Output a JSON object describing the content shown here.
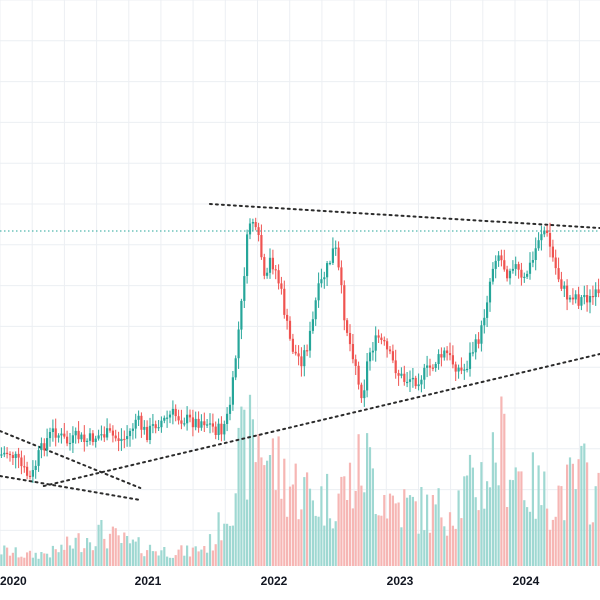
{
  "chart_data": {
    "type": "candlestick",
    "x_tick_labels": [
      "2020",
      "2021",
      "2022",
      "2023",
      "2024"
    ],
    "x_range": [
      2019.98,
      2024.64
    ],
    "y_range": [
      0,
      600
    ],
    "grid": true,
    "colors": {
      "up": "#26a69a",
      "down": "#ef5350",
      "up_volume": "#9fd8d2",
      "down_volume": "#f6b6b4",
      "grid": "#eceff3",
      "resistance": "#26a69a",
      "trendline": "#2b2b2b"
    },
    "price_path": [
      [
        2019.98,
        455
      ],
      [
        2020.05,
        452
      ],
      [
        2020.1,
        458
      ],
      [
        2020.16,
        470
      ],
      [
        2020.22,
        480
      ],
      [
        2020.28,
        455
      ],
      [
        2020.34,
        440
      ],
      [
        2020.4,
        430
      ],
      [
        2020.46,
        438
      ],
      [
        2020.52,
        444
      ],
      [
        2020.58,
        436
      ],
      [
        2020.64,
        442
      ],
      [
        2020.7,
        438
      ],
      [
        2020.76,
        435
      ],
      [
        2020.82,
        434
      ],
      [
        2020.88,
        438
      ],
      [
        2020.94,
        440
      ],
      [
        2021.0,
        430
      ],
      [
        2021.04,
        418
      ],
      [
        2021.08,
        428
      ],
      [
        2021.12,
        434
      ],
      [
        2021.16,
        428
      ],
      [
        2021.2,
        422
      ],
      [
        2021.26,
        420
      ],
      [
        2021.32,
        414
      ],
      [
        2021.38,
        418
      ],
      [
        2021.44,
        420
      ],
      [
        2021.5,
        422
      ],
      [
        2021.56,
        420
      ],
      [
        2021.62,
        426
      ],
      [
        2021.66,
        430
      ],
      [
        2021.7,
        430
      ],
      [
        2021.74,
        420
      ],
      [
        2021.78,
        395
      ],
      [
        2021.82,
        345
      ],
      [
        2021.86,
        300
      ],
      [
        2021.89,
        250
      ],
      [
        2021.92,
        222
      ],
      [
        2021.94,
        218
      ],
      [
        2021.96,
        232
      ],
      [
        2022.0,
        245
      ],
      [
        2022.04,
        290
      ],
      [
        2022.08,
        258
      ],
      [
        2022.12,
        270
      ],
      [
        2022.16,
        290
      ],
      [
        2022.2,
        320
      ],
      [
        2022.24,
        345
      ],
      [
        2022.28,
        355
      ],
      [
        2022.32,
        360
      ],
      [
        2022.36,
        348
      ],
      [
        2022.4,
        330
      ],
      [
        2022.44,
        295
      ],
      [
        2022.5,
        275
      ],
      [
        2022.54,
        262
      ],
      [
        2022.58,
        245
      ],
      [
        2022.62,
        280
      ],
      [
        2022.66,
        320
      ],
      [
        2022.7,
        345
      ],
      [
        2022.74,
        360
      ],
      [
        2022.76,
        385
      ],
      [
        2022.8,
        395
      ],
      [
        2022.84,
        355
      ],
      [
        2022.88,
        345
      ],
      [
        2022.92,
        338
      ],
      [
        2022.96,
        345
      ],
      [
        2023.0,
        355
      ],
      [
        2023.04,
        365
      ],
      [
        2023.08,
        375
      ],
      [
        2023.12,
        380
      ],
      [
        2023.16,
        378
      ],
      [
        2023.2,
        380
      ],
      [
        2023.24,
        377
      ],
      [
        2023.28,
        373
      ],
      [
        2023.32,
        368
      ],
      [
        2023.36,
        362
      ],
      [
        2023.4,
        358
      ],
      [
        2023.44,
        352
      ],
      [
        2023.48,
        360
      ],
      [
        2023.52,
        365
      ],
      [
        2023.56,
        372
      ],
      [
        2023.6,
        368
      ],
      [
        2023.64,
        352
      ],
      [
        2023.68,
        345
      ],
      [
        2023.72,
        330
      ],
      [
        2023.76,
        300
      ],
      [
        2023.8,
        270
      ],
      [
        2023.84,
        250
      ],
      [
        2023.88,
        262
      ],
      [
        2023.92,
        272
      ],
      [
        2023.96,
        262
      ],
      [
        2024.0,
        270
      ],
      [
        2024.04,
        285
      ],
      [
        2024.08,
        270
      ],
      [
        2024.12,
        260
      ],
      [
        2024.16,
        238
      ],
      [
        2024.2,
        228
      ],
      [
        2024.24,
        240
      ],
      [
        2024.28,
        262
      ],
      [
        2024.32,
        278
      ],
      [
        2024.36,
        290
      ],
      [
        2024.4,
        300
      ],
      [
        2024.44,
        292
      ],
      [
        2024.48,
        302
      ],
      [
        2024.52,
        295
      ],
      [
        2024.56,
        300
      ],
      [
        2024.6,
        296
      ],
      [
        2024.64,
        298
      ]
    ],
    "volume_path": [
      [
        2019.98,
        18
      ],
      [
        2020.2,
        12
      ],
      [
        2020.4,
        16
      ],
      [
        2020.55,
        26
      ],
      [
        2020.75,
        38
      ],
      [
        2020.9,
        30
      ],
      [
        2021.0,
        24
      ],
      [
        2021.2,
        18
      ],
      [
        2021.45,
        16
      ],
      [
        2021.6,
        24
      ],
      [
        2021.66,
        34
      ],
      [
        2021.7,
        52
      ],
      [
        2021.76,
        72
      ],
      [
        2021.84,
        120
      ],
      [
        2021.92,
        136
      ],
      [
        2022.0,
        148
      ],
      [
        2022.1,
        118
      ],
      [
        2022.2,
        98
      ],
      [
        2022.32,
        88
      ],
      [
        2022.46,
        74
      ],
      [
        2022.6,
        82
      ],
      [
        2022.72,
        96
      ],
      [
        2022.82,
        120
      ],
      [
        2022.92,
        88
      ],
      [
        2023.04,
        72
      ],
      [
        2023.18,
        66
      ],
      [
        2023.34,
        62
      ],
      [
        2023.48,
        68
      ],
      [
        2023.62,
        86
      ],
      [
        2023.76,
        104
      ],
      [
        2023.86,
        138
      ],
      [
        2023.96,
        120
      ],
      [
        2024.08,
        92
      ],
      [
        2024.22,
        78
      ],
      [
        2024.38,
        84
      ],
      [
        2024.5,
        102
      ],
      [
        2024.64,
        74
      ]
    ],
    "resistance_level": 231,
    "trendlines": [
      {
        "x": [
          2021.61,
          2024.64
        ],
        "y": [
          204,
          228
        ]
      },
      {
        "x": [
          2020.32,
          2024.64
        ],
        "y": [
          486,
          354
        ]
      },
      {
        "x": [
          2019.98,
          2021.07
        ],
        "y": [
          431,
          488
        ]
      },
      {
        "x": [
          2019.98,
          2021.07
        ],
        "y": [
          476,
          500
        ]
      }
    ]
  }
}
